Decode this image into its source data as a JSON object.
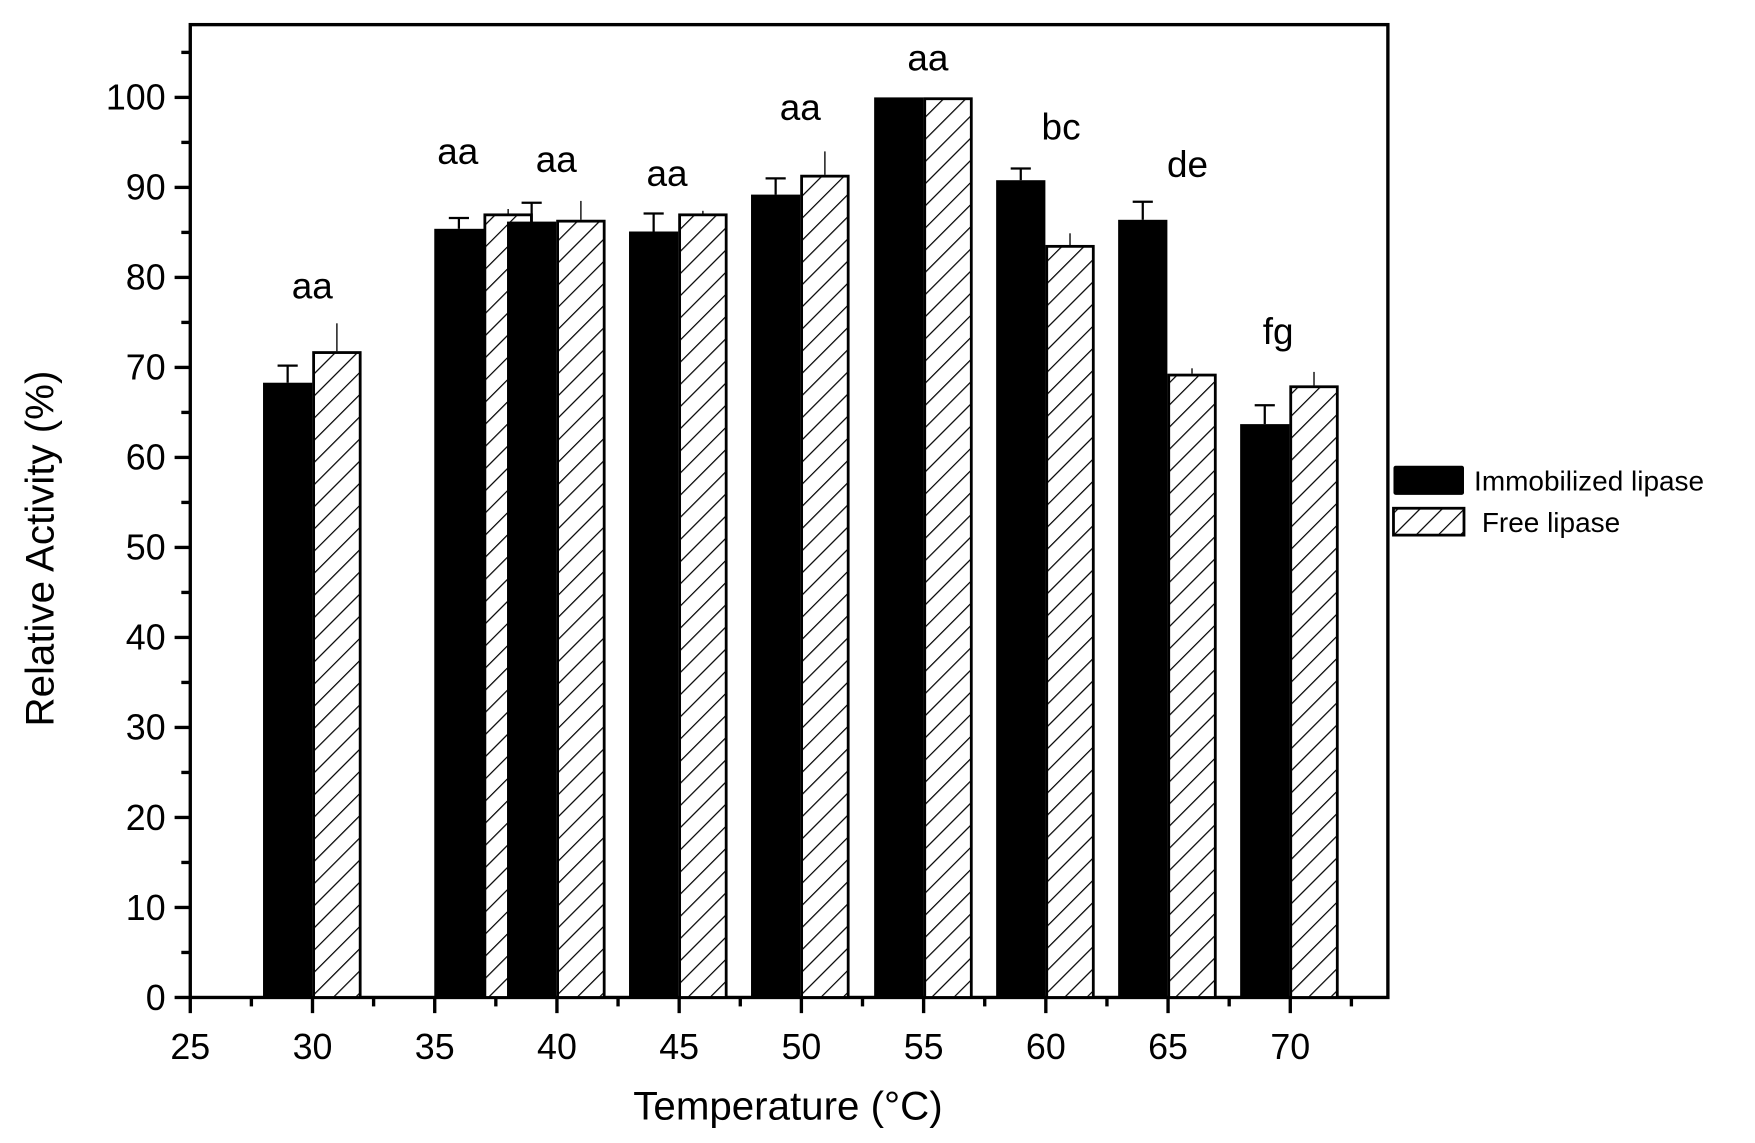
{
  "chart_data": {
    "type": "bar",
    "title": "",
    "xlabel": "Temperature (°C)",
    "ylabel": "Relative Activity (%)",
    "xlim": [
      25,
      73.5
    ],
    "ylim": [
      0,
      108
    ],
    "x_ticks": [
      25,
      30,
      35,
      40,
      45,
      50,
      55,
      60,
      65,
      70
    ],
    "y_ticks": [
      0,
      10,
      20,
      30,
      40,
      50,
      60,
      70,
      80,
      90,
      100
    ],
    "grid": false,
    "legend_position": "right-outside",
    "categories": [
      "30",
      "35",
      "40",
      "45",
      "50",
      "55",
      "60",
      "65",
      "70"
    ],
    "series": [
      {
        "name": "Immobilized lipase",
        "fill": "solid-black",
        "values": [
          68.3,
          85.4,
          86.2,
          85.1,
          89.2,
          100,
          90.8,
          86.4,
          63.7
        ],
        "errors": [
          1.9,
          1.2,
          2.1,
          2.0,
          1.8,
          0,
          1.3,
          2.0,
          2.1
        ]
      },
      {
        "name": "Free lipase",
        "fill": "diagonal-hatch",
        "values": [
          71.8,
          87.1,
          86.4,
          87.1,
          91.4,
          100,
          83.6,
          69.3,
          68.0
        ],
        "errors": [
          3.1,
          0.5,
          2.1,
          0.3,
          2.6,
          0,
          1.3,
          0.6,
          1.5
        ]
      }
    ],
    "annotations": [
      "aa",
      "aa",
      "aa",
      "aa",
      "aa",
      "aa",
      "bc",
      "de",
      "fg"
    ]
  },
  "legend": {
    "items": [
      {
        "label": "Immobilized lipase"
      },
      {
        "label": " Free lipase"
      }
    ]
  }
}
